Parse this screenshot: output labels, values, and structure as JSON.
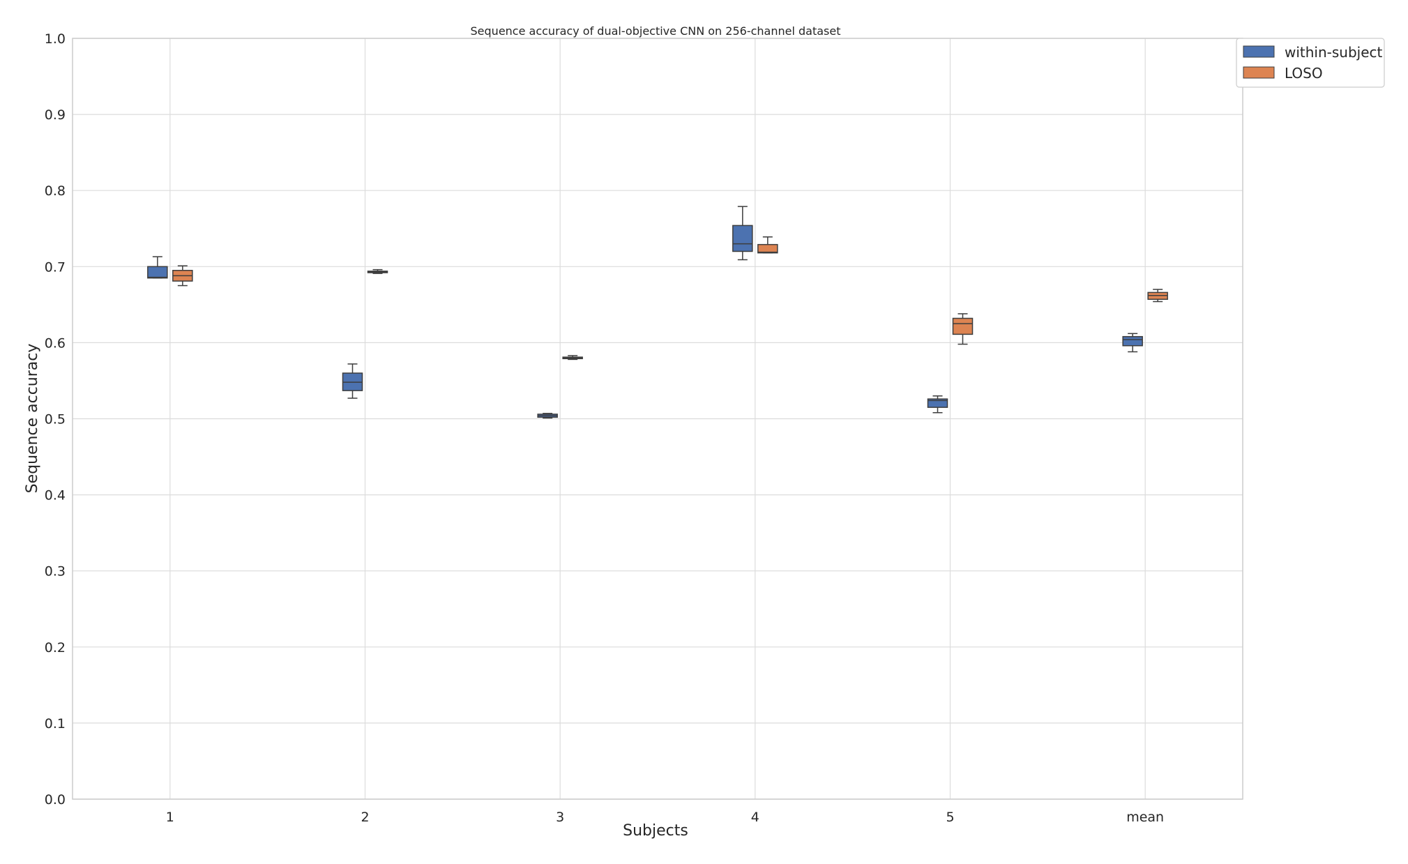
{
  "chart_data": {
    "type": "box",
    "title": "Sequence accuracy of dual-objective CNN on 256-channel dataset",
    "xlabel": "Subjects",
    "ylabel": "Sequence accuracy",
    "ylim": [
      0.0,
      1.0
    ],
    "yticks": [
      "0.0",
      "0.1",
      "0.2",
      "0.3",
      "0.4",
      "0.5",
      "0.6",
      "0.7",
      "0.8",
      "0.9",
      "1.0"
    ],
    "categories": [
      "1",
      "2",
      "3",
      "4",
      "5",
      "mean"
    ],
    "grid": true,
    "legend_position": "upper-right-outside",
    "series": [
      {
        "name": "within-subject",
        "color": "#4c72b0",
        "boxes": [
          {
            "whisker_low": 0.685,
            "q1": 0.685,
            "median": 0.686,
            "q3": 0.7,
            "whisker_high": 0.713
          },
          {
            "whisker_low": 0.527,
            "q1": 0.537,
            "median": 0.548,
            "q3": 0.56,
            "whisker_high": 0.572
          },
          {
            "whisker_low": 0.501,
            "q1": 0.502,
            "median": 0.504,
            "q3": 0.506,
            "whisker_high": 0.507
          },
          {
            "whisker_low": 0.709,
            "q1": 0.72,
            "median": 0.73,
            "q3": 0.754,
            "whisker_high": 0.779
          },
          {
            "whisker_low": 0.508,
            "q1": 0.515,
            "median": 0.524,
            "q3": 0.526,
            "whisker_high": 0.53
          },
          {
            "whisker_low": 0.588,
            "q1": 0.596,
            "median": 0.604,
            "q3": 0.608,
            "whisker_high": 0.612
          }
        ]
      },
      {
        "name": "LOSO",
        "color": "#dd8452",
        "boxes": [
          {
            "whisker_low": 0.675,
            "q1": 0.681,
            "median": 0.688,
            "q3": 0.695,
            "whisker_high": 0.701
          },
          {
            "whisker_low": 0.691,
            "q1": 0.692,
            "median": 0.693,
            "q3": 0.694,
            "whisker_high": 0.696
          },
          {
            "whisker_low": 0.578,
            "q1": 0.579,
            "median": 0.58,
            "q3": 0.581,
            "whisker_high": 0.583
          },
          {
            "whisker_low": 0.718,
            "q1": 0.718,
            "median": 0.719,
            "q3": 0.729,
            "whisker_high": 0.739
          },
          {
            "whisker_low": 0.598,
            "q1": 0.611,
            "median": 0.625,
            "q3": 0.632,
            "whisker_high": 0.638
          },
          {
            "whisker_low": 0.654,
            "q1": 0.657,
            "median": 0.662,
            "q3": 0.666,
            "whisker_high": 0.67
          }
        ]
      }
    ]
  }
}
